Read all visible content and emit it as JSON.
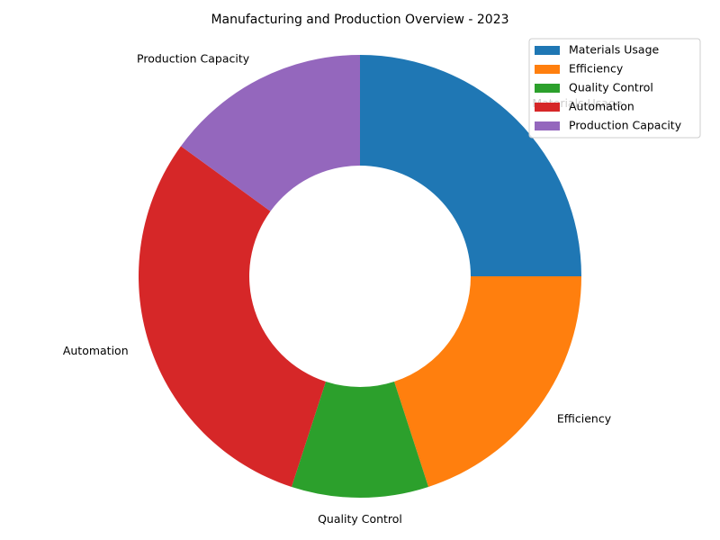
{
  "chart_data": {
    "type": "pie",
    "title": "Manufacturing and Production Overview - 2023",
    "donut": true,
    "start_angle_deg": 90,
    "direction": "clockwise",
    "legend_placement": "upper-right",
    "slices": [
      {
        "label": "Materials Usage",
        "value": 25,
        "color": "#1f77b4"
      },
      {
        "label": "Efficiency",
        "value": 20,
        "color": "#ff7f0e"
      },
      {
        "label": "Quality Control",
        "value": 10,
        "color": "#2ca02c"
      },
      {
        "label": "Automation",
        "value": 30,
        "color": "#d62728"
      },
      {
        "label": "Production Capacity",
        "value": 15,
        "color": "#9467bd"
      }
    ]
  }
}
